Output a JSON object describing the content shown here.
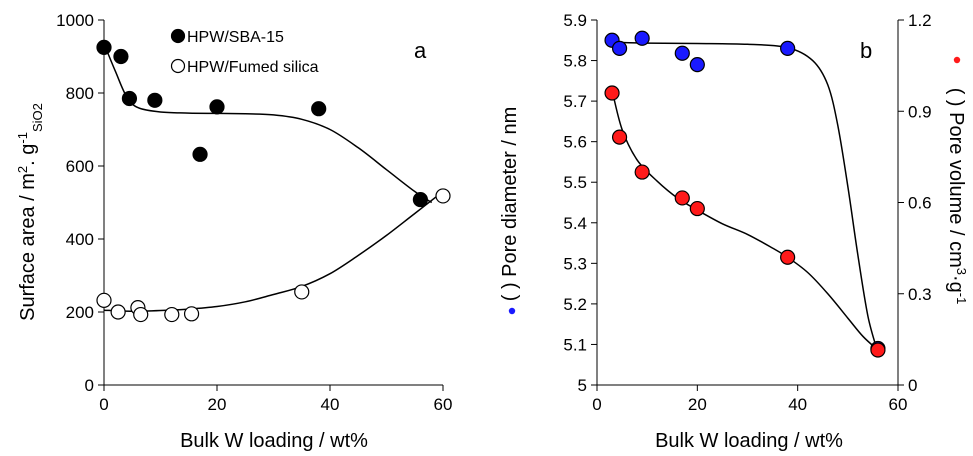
{
  "chart_data": [
    {
      "type": "scatter",
      "panel_label": "a",
      "xlabel": "Bulk W loading / wt%",
      "ylabel_main": "Surface area / m",
      "ylabel_sup1": "2",
      "ylabel_mid": ". g",
      "ylabel_sup2": "-1",
      "ylabel_sub": "SiO2",
      "xlim": [
        0,
        60
      ],
      "ylim": [
        0,
        1000
      ],
      "xticks": [
        "0",
        "20",
        "40",
        "60"
      ],
      "yticks": [
        "0",
        "200",
        "400",
        "600",
        "800",
        "1000"
      ],
      "legend_position": "top",
      "series": [
        {
          "name": "HPW/SBA-15",
          "marker": "filled-circle",
          "color": "#000000",
          "x": [
            0,
            3,
            4.5,
            9,
            17,
            20,
            38,
            56
          ],
          "y": [
            925,
            900,
            785,
            780,
            632,
            762,
            757,
            508
          ],
          "fit_x": [
            0,
            2,
            4,
            6,
            10,
            15,
            20,
            25,
            30,
            35,
            40,
            45,
            50,
            55,
            58
          ],
          "fit_y": [
            935,
            860,
            790,
            760,
            748,
            745,
            744,
            743,
            740,
            728,
            700,
            650,
            590,
            530,
            500
          ]
        },
        {
          "name": "HPW/Fumed silica",
          "marker": "open-circle",
          "color": "#000000",
          "x": [
            0,
            2.5,
            6,
            6.5,
            12,
            15.5,
            35,
            60
          ],
          "y": [
            232,
            200,
            212,
            193,
            193,
            195,
            255,
            518
          ],
          "fit_x": [
            0,
            5,
            10,
            15,
            20,
            25,
            30,
            35,
            40,
            45,
            50,
            55,
            60
          ],
          "fit_y": [
            205,
            202,
            204,
            208,
            215,
            228,
            248,
            270,
            305,
            355,
            410,
            470,
            530
          ]
        }
      ]
    },
    {
      "type": "scatter",
      "panel_label": "b",
      "xlabel": "Bulk W loading / wt%",
      "ylabel_left": "( ) Pore diameter / nm",
      "ylabel_right_main": "( ) Pore volume / cm",
      "ylabel_right_sup1": "3",
      "ylabel_right_mid": "·g",
      "ylabel_right_sup2": "-1",
      "xlim": [
        0,
        60
      ],
      "ylim_left": [
        5.0,
        5.9
      ],
      "ylim_right": [
        0,
        1.2
      ],
      "xticks": [
        "0",
        "20",
        "40",
        "60"
      ],
      "yticks_left": [
        "5",
        "5.1",
        "5.2",
        "5.3",
        "5.4",
        "5.5",
        "5.6",
        "5.7",
        "5.8",
        "5.9"
      ],
      "yticks_right": [
        "0",
        "0.3",
        "0.6",
        "0.9",
        "1.2"
      ],
      "series": [
        {
          "name": "Pore diameter",
          "axis": "left",
          "color": "#1a1aff",
          "x": [
            3,
            4.5,
            9,
            17,
            20,
            38,
            56
          ],
          "y": [
            5.85,
            5.83,
            5.855,
            5.818,
            5.79,
            5.83,
            5.09
          ],
          "fit_x": [
            3,
            10,
            20,
            30,
            38,
            43,
            46,
            48,
            50,
            52,
            54,
            56
          ],
          "fit_y": [
            5.845,
            5.843,
            5.842,
            5.84,
            5.832,
            5.8,
            5.74,
            5.64,
            5.49,
            5.32,
            5.17,
            5.08
          ]
        },
        {
          "name": "Pore volume",
          "axis": "right",
          "color": "#ff1a1a",
          "x": [
            3,
            4.5,
            9,
            17,
            20,
            38,
            56
          ],
          "y": [
            0.96,
            0.815,
            0.7,
            0.615,
            0.58,
            0.42,
            0.115
          ],
          "fit_x": [
            3,
            5,
            8,
            12,
            16,
            20,
            25,
            30,
            35,
            38,
            42,
            46,
            50,
            53,
            56
          ],
          "fit_y": [
            0.97,
            0.84,
            0.74,
            0.67,
            0.615,
            0.575,
            0.53,
            0.495,
            0.45,
            0.42,
            0.37,
            0.3,
            0.22,
            0.16,
            0.115
          ]
        }
      ]
    }
  ]
}
